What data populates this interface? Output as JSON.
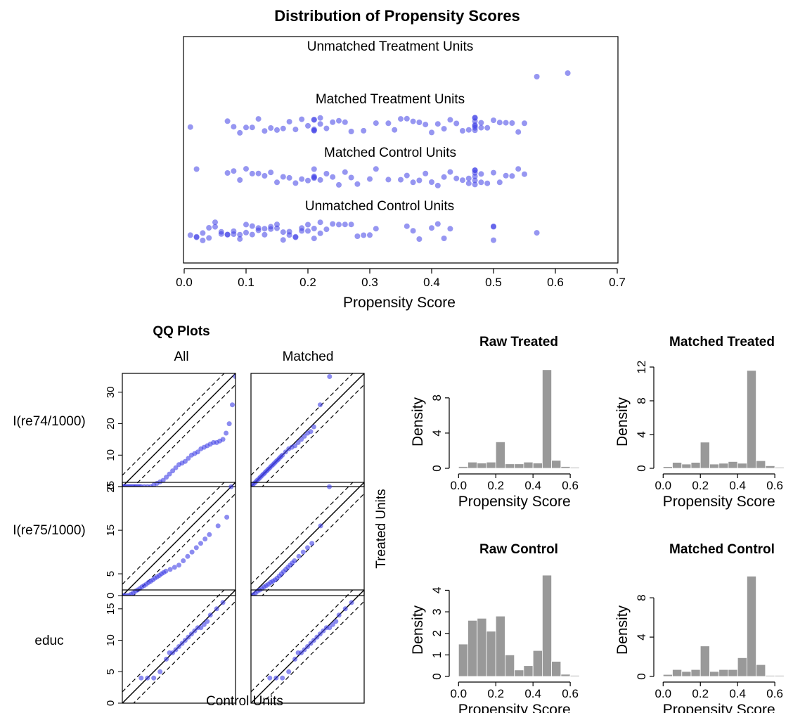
{
  "figure": {
    "title": "Distribution of Propensity Scores"
  },
  "chart_data": [
    {
      "id": "jitter",
      "type": "scatter",
      "title": "Distribution of Propensity Scores",
      "xlabel": "Propensity Score",
      "xlim": [
        0,
        0.7
      ],
      "xticks": [
        "0.0",
        "0.1",
        "0.2",
        "0.3",
        "0.4",
        "0.5",
        "0.6",
        "0.7"
      ],
      "point_color": "#4040e6",
      "groups": [
        {
          "name": "Unmatched Treatment Units",
          "n": 2,
          "x": [
            0.57,
            0.62
          ]
        },
        {
          "name": "Matched Treatment Units",
          "n": 185,
          "x": [
            0.01,
            0.07,
            0.08,
            0.09,
            0.1,
            0.11,
            0.12,
            0.13,
            0.14,
            0.15,
            0.16,
            0.17,
            0.18,
            0.19,
            0.2,
            0.21,
            0.21,
            0.21,
            0.21,
            0.21,
            0.22,
            0.22,
            0.23,
            0.24,
            0.25,
            0.26,
            0.27,
            0.29,
            0.31,
            0.33,
            0.34,
            0.35,
            0.36,
            0.37,
            0.38,
            0.39,
            0.4,
            0.41,
            0.42,
            0.43,
            0.44,
            0.45,
            0.46,
            0.47,
            0.47,
            0.47,
            0.47,
            0.47,
            0.47,
            0.47,
            0.48,
            0.48,
            0.49,
            0.5,
            0.51,
            0.52,
            0.53,
            0.54,
            0.55
          ]
        },
        {
          "name": "Matched Control Units",
          "n": 185,
          "x": [
            0.02,
            0.07,
            0.08,
            0.09,
            0.1,
            0.11,
            0.12,
            0.13,
            0.14,
            0.15,
            0.16,
            0.17,
            0.18,
            0.19,
            0.2,
            0.21,
            0.21,
            0.21,
            0.21,
            0.22,
            0.23,
            0.24,
            0.25,
            0.26,
            0.27,
            0.28,
            0.3,
            0.31,
            0.33,
            0.35,
            0.36,
            0.37,
            0.38,
            0.39,
            0.4,
            0.41,
            0.42,
            0.43,
            0.44,
            0.45,
            0.46,
            0.46,
            0.47,
            0.47,
            0.47,
            0.47,
            0.47,
            0.47,
            0.48,
            0.48,
            0.49,
            0.5,
            0.51,
            0.52,
            0.53,
            0.54,
            0.55
          ]
        },
        {
          "name": "Unmatched Control Units",
          "n": 245,
          "x": [
            0.01,
            0.02,
            0.02,
            0.03,
            0.03,
            0.04,
            0.04,
            0.05,
            0.05,
            0.06,
            0.06,
            0.07,
            0.07,
            0.08,
            0.08,
            0.09,
            0.09,
            0.1,
            0.1,
            0.11,
            0.11,
            0.12,
            0.12,
            0.13,
            0.13,
            0.14,
            0.14,
            0.15,
            0.15,
            0.16,
            0.16,
            0.17,
            0.17,
            0.18,
            0.18,
            0.19,
            0.19,
            0.2,
            0.2,
            0.21,
            0.21,
            0.22,
            0.22,
            0.23,
            0.24,
            0.25,
            0.26,
            0.27,
            0.28,
            0.29,
            0.3,
            0.31,
            0.36,
            0.37,
            0.38,
            0.4,
            0.41,
            0.42,
            0.43,
            0.5,
            0.5,
            0.5,
            0.57
          ]
        }
      ]
    },
    {
      "id": "qq",
      "type": "scatter",
      "title": "QQ Plots",
      "columns": [
        "All",
        "Matched"
      ],
      "xlabel": "Control Units",
      "ylabel": "Treated Units",
      "point_color": "#4040e6",
      "rows": [
        {
          "name": "I(re74/1000)",
          "range": [
            0,
            36
          ],
          "yticks": [
            "0",
            "10",
            "20",
            "30"
          ],
          "all": {
            "x": [
              0,
              0,
              0,
              0,
              0.5,
              1,
              1.5,
              2,
              2.5,
              3,
              3.5,
              4,
              4.5,
              5,
              5.5,
              6,
              7,
              8,
              9,
              10,
              11,
              12,
              13,
              14,
              15,
              16,
              17,
              18,
              19,
              20,
              21,
              22,
              23,
              24,
              25,
              26,
              27,
              28,
              29,
              30,
              31,
              32,
              33,
              34,
              35,
              36
            ],
            "y": [
              0,
              0,
              0,
              0,
              0,
              0,
              0,
              0,
              0,
              0,
              0,
              0,
              0,
              0,
              0,
              0,
              0,
              0,
              0,
              0.5,
              1,
              1.5,
              2,
              3,
              4,
              5,
              6,
              7,
              7.5,
              8,
              9,
              10,
              10.5,
              11,
              12,
              12.5,
              13,
              13.5,
              14,
              14,
              14.5,
              15,
              17,
              20,
              26,
              35
            ]
          },
          "matched": {
            "x": [
              0,
              0.5,
              1,
              1.5,
              2,
              2.5,
              3,
              3.5,
              4,
              4.5,
              5,
              5.5,
              6,
              6.5,
              7,
              7.5,
              8,
              8.5,
              9,
              9.5,
              10,
              11,
              12,
              13,
              14,
              15,
              16,
              17,
              18,
              19,
              20,
              22,
              25
            ],
            "y": [
              0,
              0.5,
              1,
              1.5,
              2,
              2.5,
              3,
              3.5,
              4,
              4.5,
              5,
              5.5,
              6,
              6.5,
              7,
              7.5,
              8,
              8.5,
              9,
              9.5,
              10,
              11,
              12,
              12.5,
              13,
              14,
              15,
              16,
              17,
              17.5,
              19,
              26,
              35
            ]
          }
        },
        {
          "name": "I(re75/1000)",
          "range": [
            0,
            26
          ],
          "yticks": [
            "0",
            "5",
            "15",
            "25"
          ],
          "all": {
            "x": [
              0,
              0,
              0.5,
              1,
              1.5,
              2,
              2.5,
              3,
              3.5,
              4,
              4.5,
              5,
              5.5,
              6,
              6.5,
              7,
              7.5,
              8,
              8.5,
              9,
              9.5,
              10,
              11,
              12,
              13,
              14,
              15,
              16,
              17,
              18,
              19,
              20,
              22,
              24,
              25
            ],
            "y": [
              0,
              0,
              0,
              0,
              0,
              0.3,
              0.6,
              1,
              1.3,
              1.6,
              2,
              2.3,
              2.6,
              3,
              3.3,
              3.6,
              4,
              4.3,
              4.6,
              5,
              5.3,
              5.6,
              6,
              6.5,
              7,
              8,
              9,
              10,
              11,
              12,
              13,
              14,
              16,
              18,
              25
            ]
          },
          "matched": {
            "x": [
              0,
              0.5,
              1,
              1.5,
              2,
              2.5,
              3,
              3.5,
              4,
              4.5,
              5,
              5.5,
              6,
              6.5,
              7,
              7.5,
              8,
              8.5,
              9,
              9.5,
              10,
              11,
              12,
              13,
              14,
              16,
              18
            ],
            "y": [
              0,
              0.2,
              0.5,
              1,
              1.3,
              1.6,
              2,
              2.3,
              2.6,
              3,
              3.3,
              3.6,
              4,
              4.5,
              5,
              5.5,
              6,
              6.5,
              7,
              7.5,
              8,
              9,
              10,
              11,
              12,
              16,
              25
            ]
          }
        },
        {
          "name": "educ",
          "range": [
            0,
            18
          ],
          "yticks": [
            "0",
            "5",
            "10",
            "15"
          ],
          "all": {
            "x": [
              3,
              4,
              5,
              6,
              7,
              7.5,
              8,
              8.5,
              9,
              9.5,
              10,
              10.5,
              11,
              11.5,
              12,
              12.5,
              13,
              13.5,
              14,
              15,
              16
            ],
            "y": [
              4,
              4,
              4,
              5,
              7,
              8,
              8,
              8.5,
              9,
              9.5,
              10,
              10.5,
              11,
              11.5,
              12,
              12,
              12.5,
              13,
              14,
              15,
              16
            ]
          },
          "matched": {
            "x": [
              3,
              4,
              5,
              6,
              7,
              7.5,
              8,
              8.5,
              9,
              9.5,
              10,
              10.5,
              11,
              11.5,
              12,
              12.5,
              13,
              13.5,
              14,
              15,
              16
            ],
            "y": [
              4,
              4,
              4,
              5,
              7,
              8,
              8,
              8.5,
              9,
              9.5,
              10,
              10.5,
              11,
              11.5,
              12,
              12,
              12.5,
              13,
              14,
              15,
              16
            ]
          }
        }
      ]
    },
    {
      "id": "hist",
      "type": "bar",
      "xlabel": "Propensity Score",
      "ylabel": "Density",
      "bar_color": "#999999",
      "xticks": [
        "0.0",
        "0.2",
        "0.4",
        "0.6"
      ],
      "bin_edges": [
        0,
        0.05,
        0.1,
        0.15,
        0.2,
        0.25,
        0.3,
        0.35,
        0.4,
        0.45,
        0.5,
        0.55,
        0.6,
        0.65
      ],
      "panels": [
        {
          "title": "Raw Treated",
          "ylim": [
            0,
            11.5
          ],
          "yticks": [
            0,
            4,
            8
          ],
          "values": [
            0.2,
            0.7,
            0.6,
            0.7,
            3.0,
            0.5,
            0.5,
            0.7,
            0.6,
            11.2,
            0.9,
            0.2,
            0.0
          ]
        },
        {
          "title": "Matched Treated",
          "ylim": [
            0,
            12
          ],
          "yticks": [
            0,
            4,
            8,
            12
          ],
          "values": [
            0.2,
            0.7,
            0.5,
            0.7,
            3.1,
            0.5,
            0.6,
            0.8,
            0.6,
            11.6,
            0.9,
            0.3,
            0.0
          ]
        },
        {
          "title": "Raw Control",
          "ylim": [
            0,
            4.7
          ],
          "yticks": [
            0,
            1,
            2,
            3,
            4
          ],
          "values": [
            1.5,
            2.6,
            2.7,
            2.1,
            2.8,
            1.0,
            0.3,
            0.5,
            1.2,
            4.7,
            0.7,
            0.1,
            0.0
          ]
        },
        {
          "title": "Matched Control",
          "ylim": [
            0,
            10.3
          ],
          "yticks": [
            0,
            4,
            8
          ],
          "values": [
            0.2,
            0.7,
            0.5,
            0.7,
            3.1,
            0.5,
            0.7,
            0.7,
            1.9,
            10.2,
            1.2,
            0.0,
            0.0
          ]
        }
      ]
    }
  ]
}
